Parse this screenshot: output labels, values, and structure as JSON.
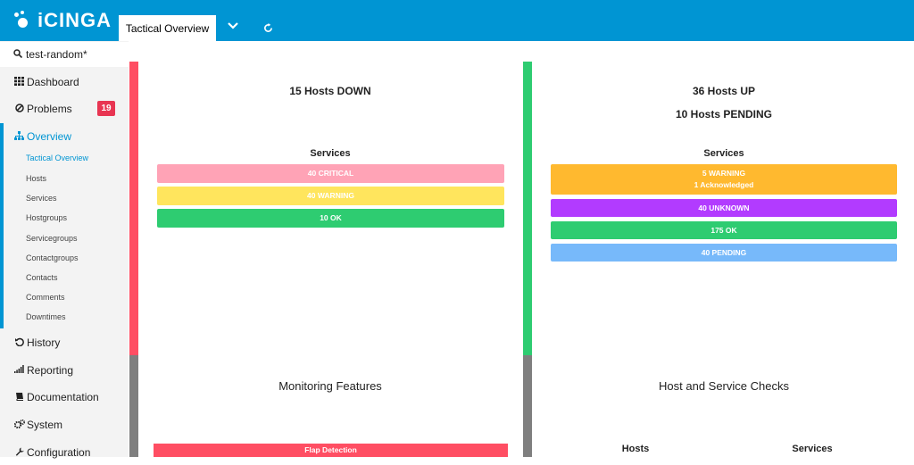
{
  "header": {
    "logo_text": "iCINGA",
    "tab_label": "Tactical Overview",
    "dropdown_icon": "chevron-down-icon",
    "refresh_icon": "refresh-icon"
  },
  "sidebar": {
    "search_value": "test-random*",
    "items": [
      {
        "label": "Dashboard",
        "icon": "grid-icon"
      },
      {
        "label": "Problems",
        "icon": "ban-icon",
        "badge": "19"
      },
      {
        "label": "Overview",
        "icon": "sitemap-icon"
      },
      {
        "label": "History",
        "icon": "history-icon"
      },
      {
        "label": "Reporting",
        "icon": "signal-icon"
      },
      {
        "label": "Documentation",
        "icon": "book-icon"
      },
      {
        "label": "System",
        "icon": "gears-icon"
      },
      {
        "label": "Configuration",
        "icon": "wrench-icon"
      }
    ],
    "sub_items": [
      "Tactical Overview",
      "Hosts",
      "Services",
      "Hostgroups",
      "Servicegroups",
      "Contactgroups",
      "Contacts",
      "Comments",
      "Downtimes"
    ]
  },
  "left_panel": {
    "hosts_down": "15 Hosts DOWN",
    "services_title": "Services",
    "bars": [
      "40 CRITICAL",
      "40 WARNING",
      "10 OK"
    ]
  },
  "right_panel": {
    "hosts_up": "36 Hosts UP",
    "hosts_pending": "10 Hosts PENDING",
    "services_title": "Services",
    "warning_line1": "5 WARNING",
    "warning_line2": "1 Acknowledged",
    "bars": [
      "40 UNKNOWN",
      "175 OK",
      "40 PENDING"
    ]
  },
  "monitoring": {
    "title": "Monitoring Features",
    "flap_label": "Flap Detection"
  },
  "checks": {
    "title": "Host and Service Checks",
    "hosts_label": "Hosts",
    "services_label": "Services"
  },
  "colors": {
    "brand": "#0095d3",
    "critical": "#ff5566",
    "warning": "#ffaa44",
    "ok": "#44bb77",
    "unknown": "#aa44ff",
    "pending": "#77aaff"
  }
}
